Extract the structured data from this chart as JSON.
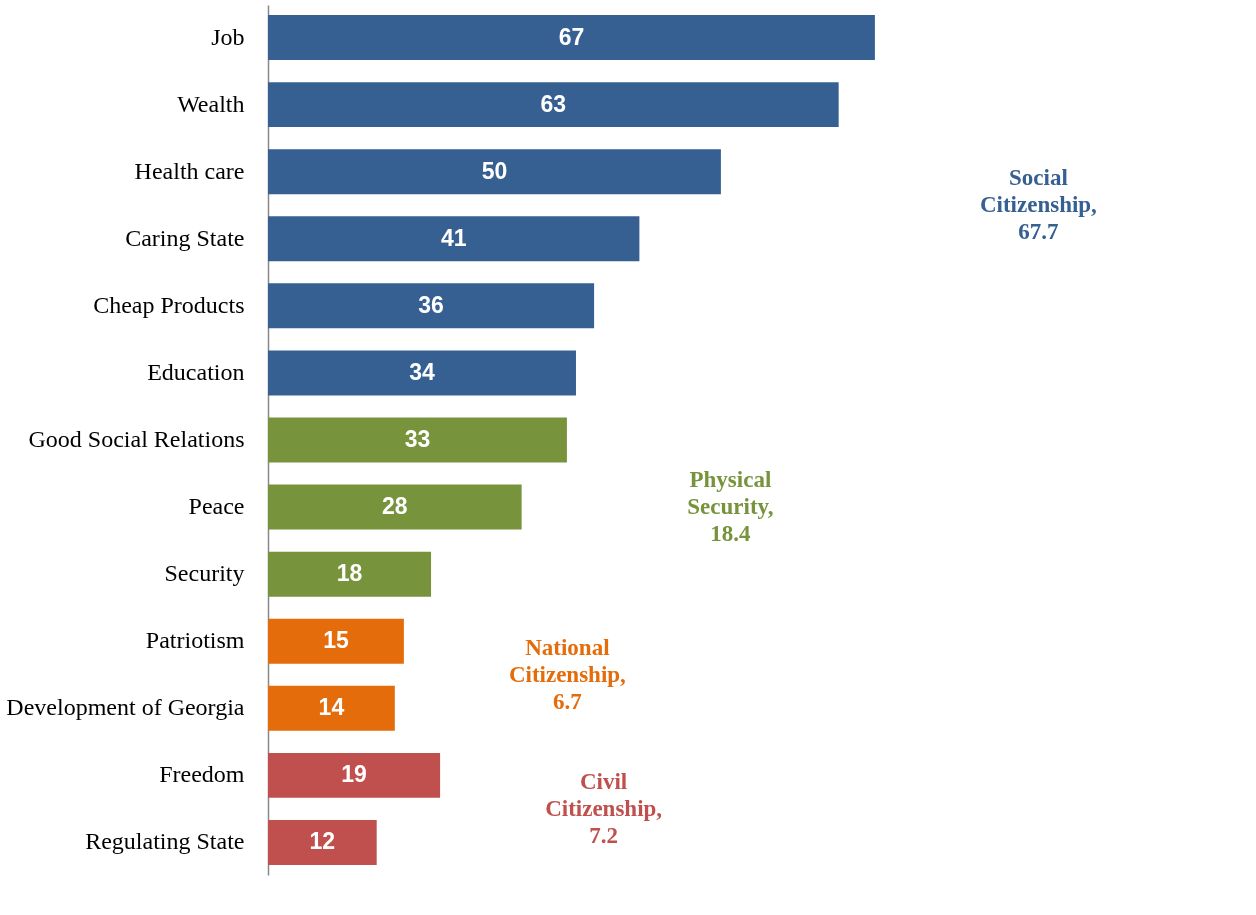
{
  "chart_data": {
    "type": "bar",
    "orientation": "horizontal",
    "data_labels": true,
    "categories": [
      "Job",
      "Wealth",
      "Health care",
      "Caring State",
      "Cheap Products",
      "Education",
      "Good Social Relations",
      "Peace",
      "Security",
      "Patriotism",
      "Development of Georgia",
      "Freedom",
      "Regulating State"
    ],
    "values": [
      67,
      63,
      50,
      41,
      36,
      34,
      33,
      28,
      18,
      15,
      14,
      19,
      12
    ],
    "colors": [
      "#376092",
      "#376092",
      "#376092",
      "#376092",
      "#376092",
      "#376092",
      "#77933c",
      "#77933c",
      "#77933c",
      "#e46c0a",
      "#e46c0a",
      "#c0504d",
      "#c0504d"
    ],
    "annotations": [
      "Social Citizenship, 67.7",
      "Physical Security, 18.4",
      "National Citizenship, 6.7",
      "Civil Citizenship, 7.2"
    ],
    "grid": false
  }
}
